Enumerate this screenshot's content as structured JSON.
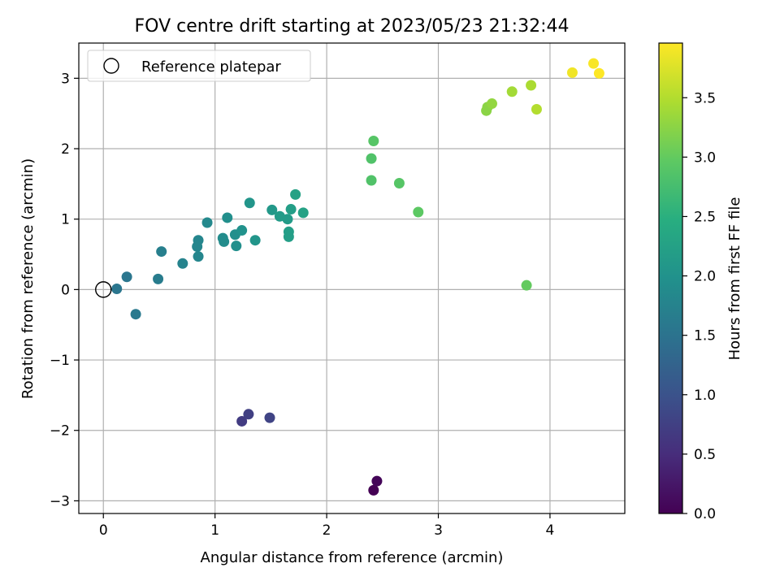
{
  "chart_data": {
    "type": "scatter",
    "title": "FOV centre drift starting at 2023/05/23 21:32:44",
    "xlabel": "Angular distance from reference (arcmin)",
    "ylabel": "Rotation from reference (arcmin)",
    "xlim": [
      -0.22,
      4.67
    ],
    "ylim": [
      -3.18,
      3.5
    ],
    "xticks": [
      0,
      1,
      2,
      3,
      4
    ],
    "xtick_labels": [
      "0",
      "1",
      "2",
      "3",
      "4"
    ],
    "yticks": [
      -3,
      -2,
      -1,
      0,
      1,
      2,
      3
    ],
    "ytick_labels": [
      "−3",
      "−2",
      "−1",
      "0",
      "1",
      "2",
      "3"
    ],
    "grid": true,
    "legend": {
      "placement": "top-left",
      "entries": [
        "Reference platepar"
      ]
    },
    "reference_point": {
      "x": 0,
      "y": 0
    },
    "colorbar": {
      "label": "Hours from first FF file",
      "min": 0.0,
      "max": 3.96,
      "colormap": "viridis",
      "ticks": [
        0.0,
        0.5,
        1.0,
        1.5,
        2.0,
        2.5,
        3.0,
        3.5
      ],
      "tick_labels": [
        "0.0",
        "0.5",
        "1.0",
        "1.5",
        "2.0",
        "2.5",
        "3.0",
        "3.5"
      ]
    },
    "points": [
      {
        "x": 2.42,
        "y": -2.85,
        "c": 0.0
      },
      {
        "x": 2.45,
        "y": -2.72,
        "c": 0.05
      },
      {
        "x": 1.24,
        "y": -1.87,
        "c": 0.7
      },
      {
        "x": 1.3,
        "y": -1.77,
        "c": 0.75
      },
      {
        "x": 1.49,
        "y": -1.82,
        "c": 0.8
      },
      {
        "x": 0.12,
        "y": 0.01,
        "c": 1.55
      },
      {
        "x": 0.21,
        "y": 0.18,
        "c": 1.55
      },
      {
        "x": 0.29,
        "y": -0.35,
        "c": 1.6
      },
      {
        "x": 0.49,
        "y": 0.15,
        "c": 1.65
      },
      {
        "x": 0.52,
        "y": 0.54,
        "c": 1.7
      },
      {
        "x": 0.71,
        "y": 0.37,
        "c": 1.75
      },
      {
        "x": 0.85,
        "y": 0.47,
        "c": 1.8
      },
      {
        "x": 0.84,
        "y": 0.61,
        "c": 1.8
      },
      {
        "x": 0.85,
        "y": 0.7,
        "c": 1.8
      },
      {
        "x": 0.93,
        "y": 0.95,
        "c": 1.85
      },
      {
        "x": 1.07,
        "y": 0.73,
        "c": 1.9
      },
      {
        "x": 1.08,
        "y": 0.68,
        "c": 1.9
      },
      {
        "x": 1.11,
        "y": 1.02,
        "c": 1.95
      },
      {
        "x": 1.18,
        "y": 0.78,
        "c": 1.95
      },
      {
        "x": 1.19,
        "y": 0.62,
        "c": 1.95
      },
      {
        "x": 1.24,
        "y": 0.84,
        "c": 2.0
      },
      {
        "x": 1.31,
        "y": 1.23,
        "c": 2.05
      },
      {
        "x": 1.36,
        "y": 0.7,
        "c": 2.05
      },
      {
        "x": 1.51,
        "y": 1.13,
        "c": 2.1
      },
      {
        "x": 1.58,
        "y": 1.04,
        "c": 2.15
      },
      {
        "x": 1.65,
        "y": 1.0,
        "c": 2.15
      },
      {
        "x": 1.66,
        "y": 0.82,
        "c": 2.2
      },
      {
        "x": 1.66,
        "y": 0.75,
        "c": 2.2
      },
      {
        "x": 1.68,
        "y": 1.14,
        "c": 2.2
      },
      {
        "x": 1.72,
        "y": 1.35,
        "c": 2.25
      },
      {
        "x": 1.79,
        "y": 1.09,
        "c": 2.25
      },
      {
        "x": 2.4,
        "y": 1.55,
        "c": 2.85
      },
      {
        "x": 2.4,
        "y": 1.86,
        "c": 2.85
      },
      {
        "x": 2.42,
        "y": 2.11,
        "c": 2.9
      },
      {
        "x": 2.65,
        "y": 1.51,
        "c": 2.9
      },
      {
        "x": 2.82,
        "y": 1.1,
        "c": 2.95
      },
      {
        "x": 3.79,
        "y": 0.06,
        "c": 3.0
      },
      {
        "x": 3.43,
        "y": 2.54,
        "c": 3.25
      },
      {
        "x": 3.44,
        "y": 2.59,
        "c": 3.25
      },
      {
        "x": 3.48,
        "y": 2.64,
        "c": 3.3
      },
      {
        "x": 3.66,
        "y": 2.81,
        "c": 3.4
      },
      {
        "x": 3.83,
        "y": 2.9,
        "c": 3.45
      },
      {
        "x": 3.88,
        "y": 2.56,
        "c": 3.5
      },
      {
        "x": 4.2,
        "y": 3.08,
        "c": 3.88
      },
      {
        "x": 4.39,
        "y": 3.21,
        "c": 3.93
      },
      {
        "x": 4.44,
        "y": 3.07,
        "c": 3.96
      }
    ]
  }
}
